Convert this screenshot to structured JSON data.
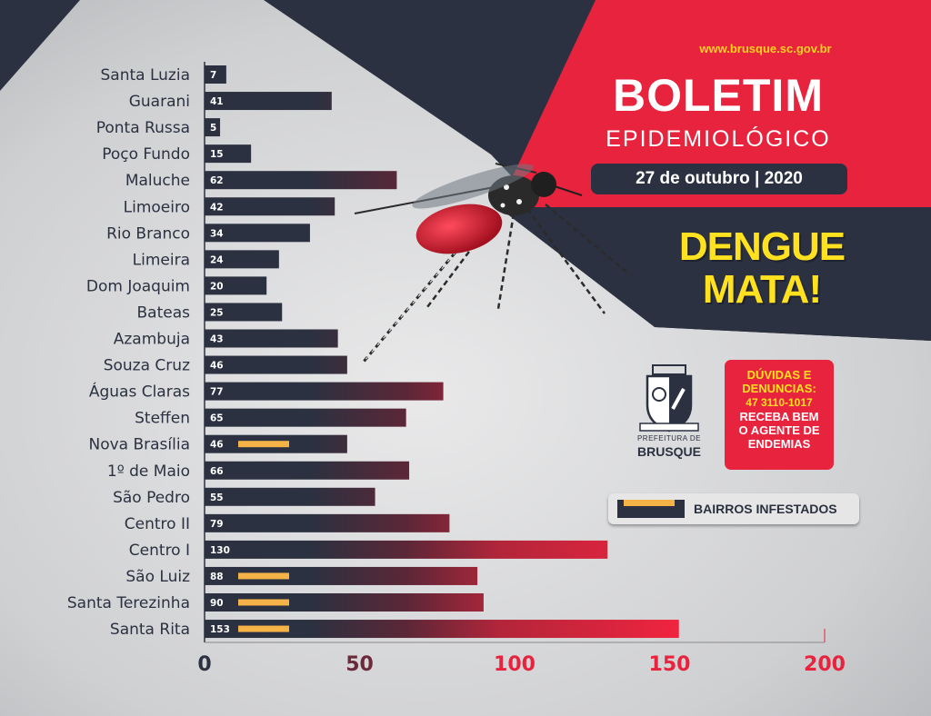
{
  "header": {
    "url": "www.brusque.sc.gov.br",
    "title": "BOLETIM",
    "subtitle": "EPIDEMIOLÓGICO",
    "date": "27 de outubro | 2020",
    "slogan_line1": "DENGUE",
    "slogan_line2": "MATA!"
  },
  "contact": {
    "line1": "DÚVIDAS E",
    "line2": "DENUNCIAS:",
    "phone": "47 3110-1017",
    "line3": "RECEBA BEM",
    "line4": "O AGENTE DE",
    "line5": "ENDEMIAS"
  },
  "organization": {
    "line1": "PREFEITURA DE",
    "line2": "BRUSQUE"
  },
  "legend": {
    "label": "BAIRROS INFESTADOS"
  },
  "colors": {
    "navy": "#2b3140",
    "red": "#e8233d",
    "yellow": "#ffe11f",
    "infested": "#f5b347"
  },
  "icons": [
    "mosquito-icon",
    "city-crest-icon"
  ],
  "chart_data": {
    "type": "bar",
    "orientation": "horizontal",
    "categories": [
      "Santa Luzia",
      "Guarani",
      "Ponta Russa",
      "Poço Fundo",
      "Maluche",
      "Limoeiro",
      "Rio Branco",
      "Limeira",
      "Dom Joaquim",
      "Bateas",
      "Azambuja",
      "Souza Cruz",
      "Águas Claras",
      "Steffen",
      "Nova Brasília",
      "1º de Maio",
      "São Pedro",
      "Centro II",
      "Centro I",
      "São Luiz",
      "Santa Terezinha",
      "Santa Rita"
    ],
    "values": [
      7,
      41,
      5,
      15,
      62,
      42,
      34,
      24,
      20,
      25,
      43,
      46,
      77,
      65,
      46,
      66,
      55,
      79,
      130,
      88,
      90,
      153
    ],
    "infested": [
      false,
      false,
      false,
      false,
      false,
      false,
      false,
      false,
      false,
      false,
      false,
      false,
      false,
      false,
      true,
      false,
      false,
      false,
      false,
      true,
      true,
      true
    ],
    "xlim": [
      0,
      200
    ],
    "xticks": [
      "0",
      "50",
      "100",
      "150",
      "200"
    ],
    "tick_values": [
      0,
      50,
      100,
      150,
      200
    ],
    "legend_position": "right"
  }
}
